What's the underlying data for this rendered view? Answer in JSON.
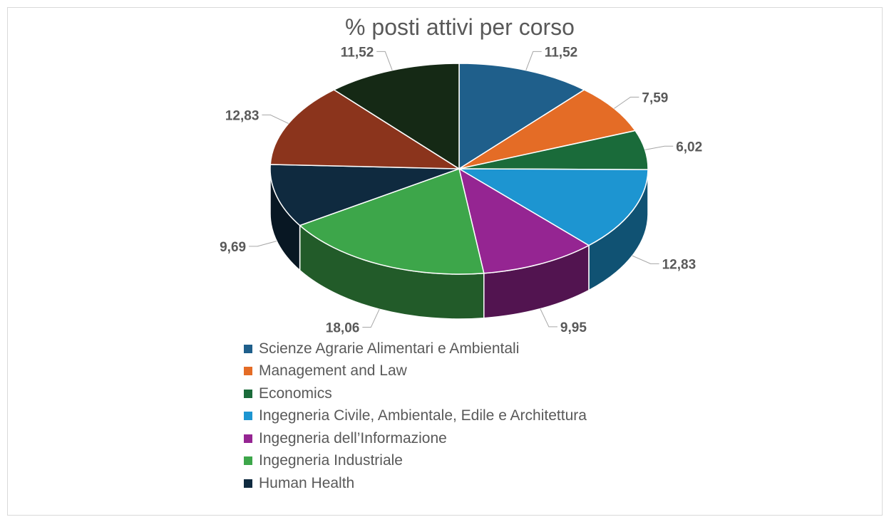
{
  "chart_data": {
    "type": "pie",
    "title": "% posti attivi per corso",
    "slices": [
      {
        "name": "Scienze Agrarie Alimentari e Ambientali",
        "value": 11.52,
        "label": "11,52",
        "color": "#1f5f8b"
      },
      {
        "name": "Management and Law",
        "value": 7.59,
        "label": "7,59",
        "color": "#e46c26"
      },
      {
        "name": "Economics",
        "value": 6.02,
        "label": "6,02",
        "color": "#1a6b3a"
      },
      {
        "name": "Ingegneria Civile, Ambientale, Edile e Architettura",
        "value": 12.83,
        "label": "12,83",
        "color": "#1d95d1"
      },
      {
        "name": "Ingegneria dell’Informazione",
        "value": 9.95,
        "label": "9,95",
        "color": "#952592"
      },
      {
        "name": "Ingegneria Industriale",
        "value": 18.06,
        "label": "18,06",
        "color": "#3da64a"
      },
      {
        "name": "Human Health",
        "value": 9.69,
        "label": "9,69",
        "color": "#0f2a3f"
      },
      {
        "name": "",
        "value": 12.83,
        "label": "12,83",
        "color": "#8b341c"
      },
      {
        "name": "",
        "value": 11.52,
        "label": "11,52",
        "color": "#152915"
      }
    ],
    "legend_position": "bottom"
  }
}
